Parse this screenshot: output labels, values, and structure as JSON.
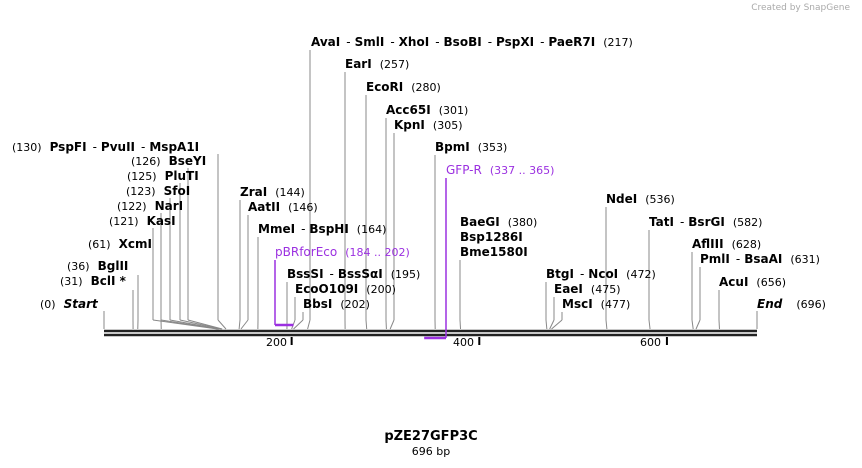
{
  "watermark": "Created by SnapGene",
  "plasmid": {
    "name": "pZE27GFP3C",
    "length": "696 bp",
    "length_bp": 696
  },
  "ticks": [
    {
      "label": "200",
      "bp": 200
    },
    {
      "label": "400",
      "bp": 400
    },
    {
      "label": "600",
      "bp": 600
    }
  ],
  "features": [
    {
      "name": "pBRforEco",
      "range": "(184 .. 202)",
      "start": 184,
      "end": 202,
      "color": "#9b30e0"
    },
    {
      "name": "GFP-R",
      "range": "(337 .. 365)",
      "start": 337,
      "end": 365,
      "color": "#9b30e0"
    }
  ],
  "sites": {
    "start": {
      "name": "Start",
      "pos": "(0)"
    },
    "bcli": {
      "name": "BclI *",
      "pos": "(31)"
    },
    "bglii": {
      "name": "BglII",
      "pos": "(36)"
    },
    "xcmi": {
      "name": "XcmI",
      "pos": "(61)"
    },
    "kasi": {
      "name": "KasI",
      "pos": "(121)"
    },
    "nari": {
      "name": "NarI",
      "pos": "(122)"
    },
    "sfoi": {
      "name": "SfoI",
      "pos": "(123)"
    },
    "pluti": {
      "name": "PluTI",
      "pos": "(125)"
    },
    "bseyi": {
      "name": "BseYI",
      "pos": "(126)"
    },
    "pspfi": {
      "names": [
        "PspFI",
        "PvuII",
        "MspA1I"
      ],
      "pos": "(130)"
    },
    "zrai": {
      "name": "ZraI",
      "pos": "(144)"
    },
    "aatii": {
      "name": "AatII",
      "pos": "(146)"
    },
    "mmei": {
      "names": [
        "MmeI",
        "BspHI"
      ],
      "pos": "(164)"
    },
    "bsssi": {
      "names": [
        "BssSI",
        "BssSαI"
      ],
      "pos": "(195)"
    },
    "ecoo109i": {
      "name": "EcoO109I",
      "pos": "(200)"
    },
    "bbsi": {
      "name": "BbsI",
      "pos": "(202)"
    },
    "avai": {
      "names": [
        "AvaI",
        "SmlI",
        "XhoI",
        "BsoBI",
        "PspXI",
        "PaeR7I"
      ],
      "pos": "(217)"
    },
    "eari": {
      "name": "EarI",
      "pos": "(257)"
    },
    "ecori": {
      "name": "EcoRI",
      "pos": "(280)"
    },
    "acc65i": {
      "name": "Acc65I",
      "pos": "(301)"
    },
    "kpni": {
      "name": "KpnI",
      "pos": "(305)"
    },
    "bpmi": {
      "name": "BpmI",
      "pos": "(353)"
    },
    "baegi": {
      "names": [
        "BaeGI",
        "Bsp1286I",
        "Bme1580I"
      ],
      "pos": "(380)"
    },
    "btgi": {
      "names": [
        "BtgI",
        "NcoI"
      ],
      "pos": "(472)"
    },
    "eaei": {
      "name": "EaeI",
      "pos": "(475)"
    },
    "msci": {
      "name": "MscI",
      "pos": "(477)"
    },
    "ndei": {
      "name": "NdeI",
      "pos": "(536)"
    },
    "tati": {
      "names": [
        "TatI",
        "BsrGI"
      ],
      "pos": "(582)"
    },
    "afliii": {
      "name": "AflIII",
      "pos": "(628)"
    },
    "pmli": {
      "names": [
        "PmlI",
        "BsaAI"
      ],
      "pos": "(631)"
    },
    "acui": {
      "name": "AcuI",
      "pos": "(656)"
    },
    "end": {
      "name": "End",
      "pos": "(696)"
    }
  }
}
